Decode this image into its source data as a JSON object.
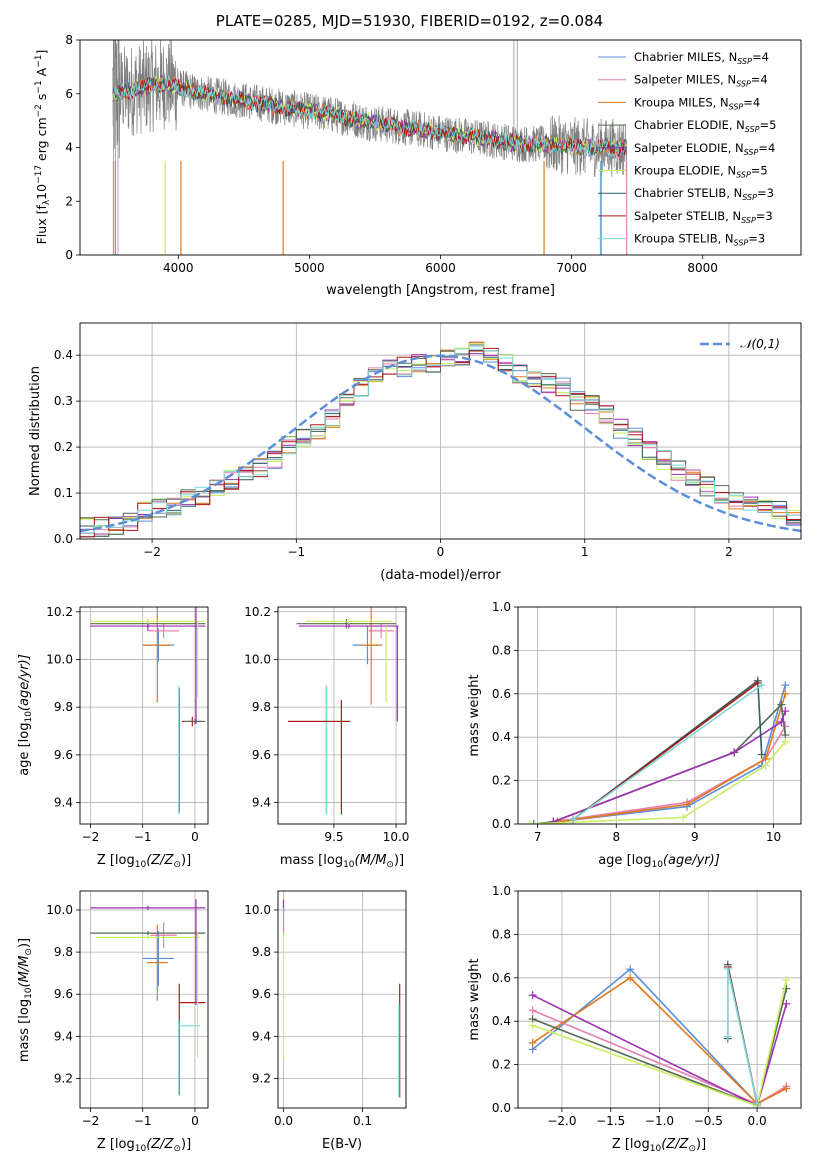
{
  "title": "PLATE=0285, MJD=51930, FIBERID=0192, z=0.084",
  "colors": {
    "Chabrier MILES": "#5b8fd6",
    "Salpeter MILES": "#e87fb0",
    "Kroupa MILES": "#e07a1e",
    "Chabrier ELODIE": "#556b55",
    "Salpeter ELODIE": "#9b30b0",
    "Kroupa ELODIE": "#c8f060",
    "Chabrier STELIB": "#2f5f60",
    "Salpeter STELIB": "#b01818",
    "Kroupa STELIB": "#7fd8d8",
    "data": "#808080",
    "normal": "#5b8fd6",
    "grid": "#b0b0b0"
  },
  "chart_data": [
    {
      "id": "spectrum",
      "type": "line",
      "xlabel": "wavelength [Angstrom, rest frame]",
      "ylabel": "Flux [f_λ10^-17 erg cm^-2 s^-1 A^-1]",
      "xlim": [
        3250,
        8750
      ],
      "ylim": [
        0,
        8
      ],
      "xticks": [
        4000,
        5000,
        6000,
        7000,
        8000
      ],
      "yticks": [
        0,
        2,
        4,
        6,
        8
      ],
      "legend": [
        "Chabrier MILES, N_SSP=4",
        "Salpeter MILES, N_SSP=4",
        "Kroupa MILES, N_SSP=4",
        "Chabrier ELODIE, N_SSP=5",
        "Salpeter ELODIE, N_SSP=4",
        "Kroupa ELODIE, N_SSP=5",
        "Chabrier STELIB, N_SSP=3",
        "Salpeter STELIB, N_SSP=3",
        "Kroupa STELIB, N_SSP=3"
      ],
      "legend_position": "right",
      "continuum": [
        [
          3500,
          6.0
        ],
        [
          3700,
          6.2
        ],
        [
          3900,
          6.4
        ],
        [
          4100,
          6.1
        ],
        [
          4300,
          5.9
        ],
        [
          4500,
          5.75
        ],
        [
          4800,
          5.5
        ],
        [
          5000,
          5.35
        ],
        [
          5200,
          5.2
        ],
        [
          5500,
          4.9
        ],
        [
          5800,
          4.7
        ],
        [
          6000,
          4.55
        ],
        [
          6300,
          4.35
        ],
        [
          6600,
          4.15
        ],
        [
          6900,
          4.1
        ],
        [
          7100,
          4.0
        ],
        [
          7400,
          4.0
        ]
      ]
    },
    {
      "id": "residuals",
      "type": "histogram",
      "xlabel": "(data-model)/error",
      "ylabel": "Normed distribution",
      "xlim": [
        -2.5,
        2.5
      ],
      "ylim": [
        0,
        0.47
      ],
      "xticks": [
        -2,
        -1,
        0,
        1,
        2
      ],
      "yticks": [
        0.0,
        0.1,
        0.2,
        0.3,
        0.4
      ],
      "legend": [
        "𝒩(0,1)"
      ],
      "legend_position": "top-right",
      "bins_start": -2.5,
      "bin_width": 0.1,
      "base_values": [
        0.025,
        0.028,
        0.032,
        0.04,
        0.06,
        0.065,
        0.068,
        0.09,
        0.095,
        0.11,
        0.13,
        0.14,
        0.155,
        0.175,
        0.2,
        0.22,
        0.24,
        0.26,
        0.3,
        0.33,
        0.36,
        0.37,
        0.375,
        0.38,
        0.385,
        0.39,
        0.4,
        0.41,
        0.4,
        0.38,
        0.36,
        0.35,
        0.34,
        0.33,
        0.3,
        0.29,
        0.27,
        0.24,
        0.22,
        0.19,
        0.17,
        0.15,
        0.13,
        0.115,
        0.095,
        0.085,
        0.08,
        0.07,
        0.06,
        0.045,
        0.04
      ]
    },
    {
      "id": "age-vs-Z",
      "type": "errorbar",
      "xlabel": "Z [log10(Z/Z⊙)]",
      "ylabel": "age  [log10(age/yr)]",
      "xlim": [
        -2.2,
        0.25
      ],
      "ylim": [
        9.31,
        10.22
      ],
      "xticks": [
        -2,
        -1,
        0
      ],
      "yticks": [
        9.4,
        9.6,
        9.8,
        10.0,
        10.2
      ]
    },
    {
      "id": "age-vs-mass",
      "type": "errorbar",
      "xlabel": "mass [log10(M/M⊙)]",
      "ylabel": "",
      "xlim": [
        9.05,
        10.08
      ],
      "ylim": [
        9.31,
        10.22
      ],
      "xticks": [
        9.5,
        10.0
      ],
      "yticks": [
        9.4,
        9.6,
        9.8,
        10.0,
        10.2
      ]
    },
    {
      "id": "massweight-vs-age",
      "type": "line",
      "xlabel": "age  [log10(age/yr)]",
      "ylabel": "mass weight",
      "xlim": [
        6.75,
        10.35
      ],
      "ylim": [
        0,
        1
      ],
      "xticks": [
        7,
        8,
        9,
        10
      ],
      "yticks": [
        0.0,
        0.2,
        0.4,
        0.6,
        0.8,
        1.0
      ]
    },
    {
      "id": "mass-vs-Z",
      "type": "errorbar",
      "xlabel": "Z [log10(Z/Z⊙)]",
      "ylabel": "mass [log10(M/M⊙)]",
      "xlim": [
        -2.2,
        0.25
      ],
      "ylim": [
        9.06,
        10.09
      ],
      "xticks": [
        -2,
        -1,
        0
      ],
      "yticks": [
        9.2,
        9.4,
        9.6,
        9.8,
        10.0
      ]
    },
    {
      "id": "mass-vs-ebv",
      "type": "errorbar",
      "xlabel": "E(B-V)",
      "ylabel": "",
      "xlim": [
        -0.007,
        0.155
      ],
      "ylim": [
        9.06,
        10.09
      ],
      "xticks": [
        0.0,
        0.1
      ],
      "yticks": [
        9.2,
        9.4,
        9.6,
        9.8,
        10.0
      ]
    },
    {
      "id": "massweight-vs-Z",
      "type": "line",
      "xlabel": "Z [log10(Z/Z⊙)]",
      "ylabel": "mass weight",
      "xlim": [
        -2.45,
        0.45
      ],
      "ylim": [
        0,
        1
      ],
      "xticks": [
        -2.0,
        -1.5,
        -1.0,
        -0.5,
        0.0
      ],
      "yticks": [
        0.0,
        0.2,
        0.4,
        0.6,
        0.8,
        1.0
      ]
    }
  ],
  "errorbars": {
    "age_Z": [
      {
        "m": "Chabrier MILES",
        "x": -0.7,
        "xerr": 0.3,
        "y": 10.06,
        "yerr": 0.07
      },
      {
        "m": "Salpeter MILES",
        "x": -0.6,
        "xerr": 0.3,
        "y": 10.12,
        "yerr": 0.03
      },
      {
        "m": "Kroupa MILES",
        "x": -0.72,
        "xerr": 0.25,
        "y": 10.06,
        "yerr": 0.24
      },
      {
        "m": "Chabrier ELODIE",
        "x": -0.9,
        "xerr": 1.1,
        "y": 10.15,
        "yerr": 0.02
      },
      {
        "m": "Salpeter ELODIE",
        "x": -0.9,
        "xerr": 1.1,
        "y": 10.14,
        "yerr": 0.02
      },
      {
        "m": "Kroupa ELODIE",
        "x": -0.9,
        "xerr": 1.1,
        "y": 10.16,
        "yerr": 0.01
      },
      {
        "m": "Chabrier STELIB",
        "x": -0.3,
        "xerr": 0.0,
        "y": 9.62,
        "yerr": 0.26
      },
      {
        "m": "Salpeter STELIB",
        "x": -0.05,
        "xerr": 0.2,
        "y": 9.74,
        "yerr": 0.02
      },
      {
        "m": "Kroupa STELIB",
        "x": -0.31,
        "xerr": 0.0,
        "y": 9.62,
        "yerr": 0.27
      },
      {
        "m": "Chabrier ELODIE",
        "x": 0.0,
        "xerr": 0.2,
        "y": 9.74,
        "yerr": 0.01
      },
      {
        "m": "Kroupa ELODIE",
        "x": 0.05,
        "xerr": 0.0,
        "y": 10.0,
        "yerr": 0.16
      },
      {
        "m": "Salpeter ELODIE",
        "x": 0.02,
        "xerr": 0.0,
        "y": 10.0,
        "yerr": 0.27
      }
    ],
    "age_mass": [
      {
        "m": "Chabrier MILES",
        "x": 9.77,
        "xerr": 0.12,
        "y": 10.06,
        "yerr": 0.08
      },
      {
        "m": "Salpeter MILES",
        "x": 9.88,
        "xerr": 0.1,
        "y": 10.12,
        "yerr": 0.03
      },
      {
        "m": "Kroupa MILES",
        "x": 9.8,
        "xerr": 0.08,
        "y": 10.06,
        "yerr": 0.25
      },
      {
        "m": "Chabrier ELODIE",
        "x": 9.6,
        "xerr": 0.4,
        "y": 10.15,
        "yerr": 0.02
      },
      {
        "m": "Salpeter ELODIE",
        "x": 9.62,
        "xerr": 0.4,
        "y": 10.14,
        "yerr": 0.01
      },
      {
        "m": "Kroupa ELODIE",
        "x": 9.62,
        "xerr": 0.35,
        "y": 10.16,
        "yerr": 0.01
      },
      {
        "m": "Chabrier STELIB",
        "x": 9.44,
        "xerr": 0.0,
        "y": 9.62,
        "yerr": 0.27
      },
      {
        "m": "Salpeter STELIB",
        "x": 9.56,
        "xerr": 0.0,
        "y": 9.59,
        "yerr": 0.24
      },
      {
        "m": "Kroupa STELIB",
        "x": 9.44,
        "xerr": 0.0,
        "y": 9.62,
        "yerr": 0.27
      },
      {
        "m": "Chabrier STELIB",
        "x": 9.38,
        "xerr": 0.25,
        "y": 9.74,
        "yerr": 0.0
      },
      {
        "m": "Salpeter STELIB",
        "x": 9.38,
        "xerr": 0.25,
        "y": 9.74,
        "yerr": 0.0
      },
      {
        "m": "Kroupa ELODIE",
        "x": 9.92,
        "xerr": 0.0,
        "y": 9.98,
        "yerr": 0.16
      },
      {
        "m": "Salpeter ELODIE",
        "x": 10.01,
        "xerr": 0.0,
        "y": 9.94,
        "yerr": 0.2
      }
    ],
    "mass_Z": [
      {
        "m": "Chabrier MILES",
        "x": -0.7,
        "xerr": 0.3,
        "y": 9.77,
        "yerr": 0.13
      },
      {
        "m": "Salpeter MILES",
        "x": -0.6,
        "xerr": 0.25,
        "y": 9.88,
        "yerr": 0.06
      },
      {
        "m": "Kroupa MILES",
        "x": -0.72,
        "xerr": 0.2,
        "y": 9.75,
        "yerr": 0.18
      },
      {
        "m": "Chabrier ELODIE",
        "x": -0.9,
        "xerr": 1.1,
        "y": 9.89,
        "yerr": 0.01
      },
      {
        "m": "Salpeter ELODIE",
        "x": -0.9,
        "xerr": 1.1,
        "y": 10.01,
        "yerr": 0.01
      },
      {
        "m": "Kroupa ELODIE",
        "x": -0.9,
        "xerr": 1.0,
        "y": 9.87,
        "yerr": 0.01
      },
      {
        "m": "Chabrier STELIB",
        "x": -0.3,
        "xerr": 0.0,
        "y": 9.3,
        "yerr": 0.18
      },
      {
        "m": "Salpeter STELIB",
        "x": -0.3,
        "xerr": 0.0,
        "y": 9.56,
        "yerr": 0.09
      },
      {
        "m": "Salpeter STELIB",
        "x": -0.05,
        "xerr": 0.25,
        "y": 9.56,
        "yerr": 0.0
      },
      {
        "m": "Kroupa STELIB",
        "x": -0.31,
        "xerr": 0.0,
        "y": 9.3,
        "yerr": 0.18
      },
      {
        "m": "Kroupa STELIB",
        "x": -0.1,
        "xerr": 0.2,
        "y": 9.45,
        "yerr": 0.0
      },
      {
        "m": "Kroupa ELODIE",
        "x": 0.05,
        "xerr": 0.0,
        "y": 9.6,
        "yerr": 0.3
      },
      {
        "m": "Salpeter ELODIE",
        "x": 0.02,
        "xerr": 0.0,
        "y": 9.8,
        "yerr": 0.25
      }
    ],
    "mass_ebv": [
      {
        "m": "Kroupa ELODIE",
        "x": 0.0,
        "xerr": 0.0,
        "y": 9.65,
        "yerr": 0.36
      },
      {
        "m": "Salpeter ELODIE",
        "x": 0.0,
        "xerr": 0.0,
        "y": 10.02,
        "yerr": 0.03
      },
      {
        "m": "Salpeter MILES",
        "x": 0.0,
        "xerr": 0.0,
        "y": 9.95,
        "yerr": 0.06
      },
      {
        "m": "Salpeter STELIB",
        "x": 0.147,
        "xerr": 0.0,
        "y": 9.38,
        "yerr": 0.27
      },
      {
        "m": "Kroupa STELIB",
        "x": 0.146,
        "xerr": 0.0,
        "y": 9.33,
        "yerr": 0.22
      }
    ]
  },
  "mw_age": {
    "Chabrier MILES": [
      [
        7.25,
        0.01
      ],
      [
        8.9,
        0.08
      ],
      [
        9.85,
        0.27
      ],
      [
        10.15,
        0.64
      ]
    ],
    "Salpeter MILES": [
      [
        7.2,
        0.01
      ],
      [
        8.9,
        0.1
      ],
      [
        9.9,
        0.3
      ],
      [
        10.15,
        0.45
      ]
    ],
    "Kroupa MILES": [
      [
        7.25,
        0.01
      ],
      [
        8.9,
        0.09
      ],
      [
        9.9,
        0.3
      ],
      [
        10.15,
        0.6
      ]
    ],
    "Chabrier ELODIE": [
      [
        6.95,
        0.0
      ],
      [
        7.2,
        0.01
      ],
      [
        9.5,
        0.33
      ],
      [
        10.1,
        0.55
      ],
      [
        10.15,
        0.41
      ]
    ],
    "Salpeter ELODIE": [
      [
        7.2,
        0.01
      ],
      [
        9.5,
        0.33
      ],
      [
        10.1,
        0.47
      ],
      [
        10.15,
        0.52
      ]
    ],
    "Kroupa ELODIE": [
      [
        6.9,
        0.0
      ],
      [
        8.85,
        0.03
      ],
      [
        9.9,
        0.27
      ],
      [
        10.15,
        0.38
      ]
    ],
    "Chabrier STELIB": [
      [
        7.45,
        0.02
      ],
      [
        9.8,
        0.66
      ],
      [
        9.85,
        0.32
      ]
    ],
    "Salpeter STELIB": [
      [
        7.45,
        0.02
      ],
      [
        9.8,
        0.65
      ]
    ],
    "Kroupa STELIB": [
      [
        7.45,
        0.02
      ],
      [
        9.85,
        0.64
      ]
    ]
  },
  "mw_Z": {
    "Chabrier MILES": [
      [
        -2.3,
        0.27
      ],
      [
        -1.3,
        0.64
      ],
      [
        0.0,
        0.02
      ],
      [
        0.3,
        0.09
      ]
    ],
    "Salpeter MILES": [
      [
        -2.3,
        0.45
      ],
      [
        0.0,
        0.02
      ],
      [
        0.3,
        0.1
      ]
    ],
    "Kroupa MILES": [
      [
        -2.3,
        0.3
      ],
      [
        -1.3,
        0.6
      ],
      [
        0.0,
        0.02
      ],
      [
        0.3,
        0.09
      ]
    ],
    "Chabrier ELODIE": [
      [
        -2.3,
        0.41
      ],
      [
        0.0,
        0.01
      ],
      [
        0.3,
        0.55
      ]
    ],
    "Salpeter ELODIE": [
      [
        -2.3,
        0.52
      ],
      [
        0.0,
        0.01
      ],
      [
        0.3,
        0.48
      ]
    ],
    "Kroupa ELODIE": [
      [
        -2.3,
        0.38
      ],
      [
        0.0,
        0.01
      ],
      [
        0.3,
        0.59
      ]
    ],
    "Chabrier STELIB": [
      [
        -0.3,
        0.32
      ],
      [
        -0.3,
        0.66
      ],
      [
        0.0,
        0.02
      ]
    ],
    "Salpeter STELIB": [
      [
        -0.3,
        0.65
      ],
      [
        0.0,
        0.02
      ]
    ],
    "Kroupa STELIB": [
      [
        -0.3,
        0.33
      ],
      [
        -0.3,
        0.64
      ],
      [
        0.0,
        0.02
      ]
    ]
  },
  "labels": {
    "spectrum_ylabel": "Flux [f",
    "spectrum_ylabel_parts": [
      "Flux [f",
      "λ",
      "10",
      "−17",
      " erg cm",
      "−2",
      " s",
      "−1",
      " A",
      "−1",
      "]"
    ],
    "normal_legend": "𝒩(0, 1)",
    "Z_label": "Z [log",
    "Z_label_parts": [
      "Z [log",
      "10",
      "(Z/Z",
      "⊙",
      ")]"
    ],
    "mass_label_parts": [
      "mass [log",
      "10",
      "(M/M",
      "⊙",
      ")]"
    ],
    "age_label_parts": [
      "age  [log",
      "10",
      "(age/yr)]"
    ]
  }
}
